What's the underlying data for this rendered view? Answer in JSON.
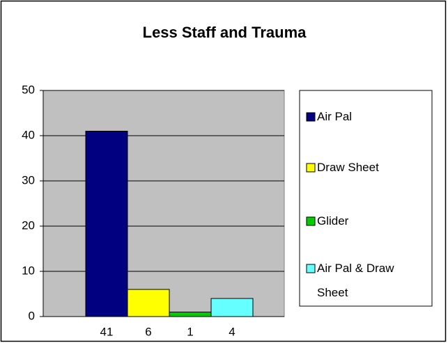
{
  "chart_data": {
    "type": "bar",
    "title": "Less Staff and Trauma",
    "categories": [
      "41",
      "6",
      "1",
      "4"
    ],
    "series": [
      {
        "name": "Air Pal",
        "color": "#000080",
        "values": [
          41,
          null,
          null,
          null
        ]
      },
      {
        "name": "Draw Sheet",
        "color": "#ffff00",
        "values": [
          null,
          6,
          null,
          null
        ]
      },
      {
        "name": "Glider",
        "color": "#00cc00",
        "values": [
          null,
          null,
          1,
          null
        ]
      },
      {
        "name": "Air Pal & Draw Sheet",
        "color": "#66ffff",
        "values": [
          null,
          null,
          null,
          4
        ]
      }
    ],
    "ylim": [
      0,
      50
    ],
    "yticks": [
      0,
      10,
      20,
      30,
      40,
      50
    ],
    "grid": true,
    "legend": "right"
  }
}
